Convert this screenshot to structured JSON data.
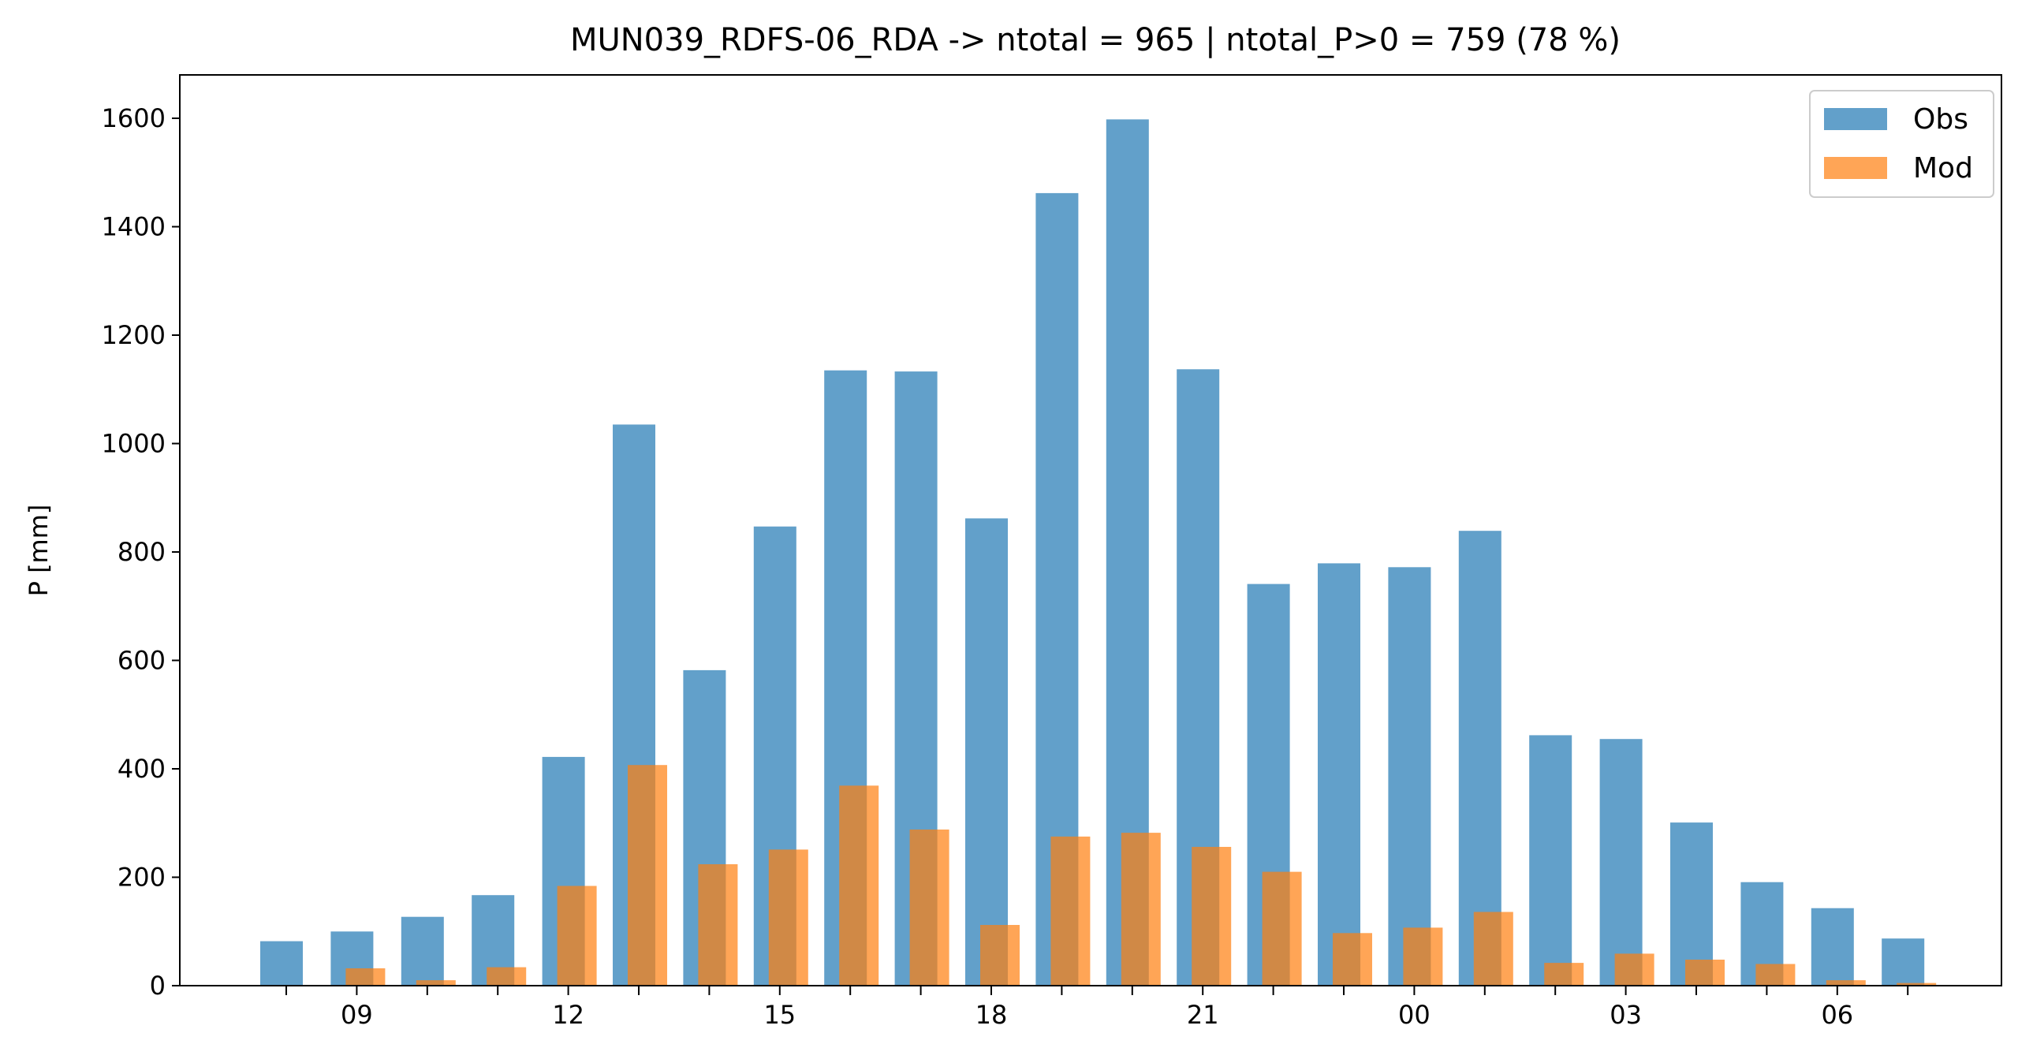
{
  "chart_data": {
    "type": "bar",
    "title": "MUN039_RDFS-06_RDA -> ntotal = 965 | ntotal_P>0 = 759 (78 %)",
    "xlabel": "",
    "ylabel": "P [mm]",
    "ylim": [
      0,
      1680
    ],
    "yticks": [
      0,
      200,
      400,
      600,
      800,
      1000,
      1200,
      1400,
      1600
    ],
    "hours": [
      8,
      9,
      10,
      11,
      12,
      13,
      14,
      15,
      16,
      17,
      18,
      19,
      20,
      21,
      22,
      23,
      0,
      1,
      2,
      3,
      4,
      5,
      6,
      7
    ],
    "xtick_labels": [
      "09",
      "12",
      "15",
      "18",
      "21",
      "00",
      "03",
      "06"
    ],
    "grid": false,
    "legend_position": "top-right",
    "series": [
      {
        "name": "Obs",
        "color": "#1f77b4",
        "values": [
          82,
          100,
          127,
          167,
          422,
          1035,
          582,
          847,
          1135,
          1133,
          862,
          1462,
          1598,
          1137,
          741,
          779,
          772,
          839,
          462,
          455,
          301,
          191,
          143,
          87
        ]
      },
      {
        "name": "Mod",
        "color": "#ff7f0e",
        "values": [
          0,
          32,
          10,
          34,
          184,
          407,
          224,
          251,
          369,
          288,
          112,
          275,
          282,
          256,
          210,
          97,
          107,
          136,
          42,
          59,
          48,
          40,
          10,
          5
        ]
      }
    ]
  }
}
